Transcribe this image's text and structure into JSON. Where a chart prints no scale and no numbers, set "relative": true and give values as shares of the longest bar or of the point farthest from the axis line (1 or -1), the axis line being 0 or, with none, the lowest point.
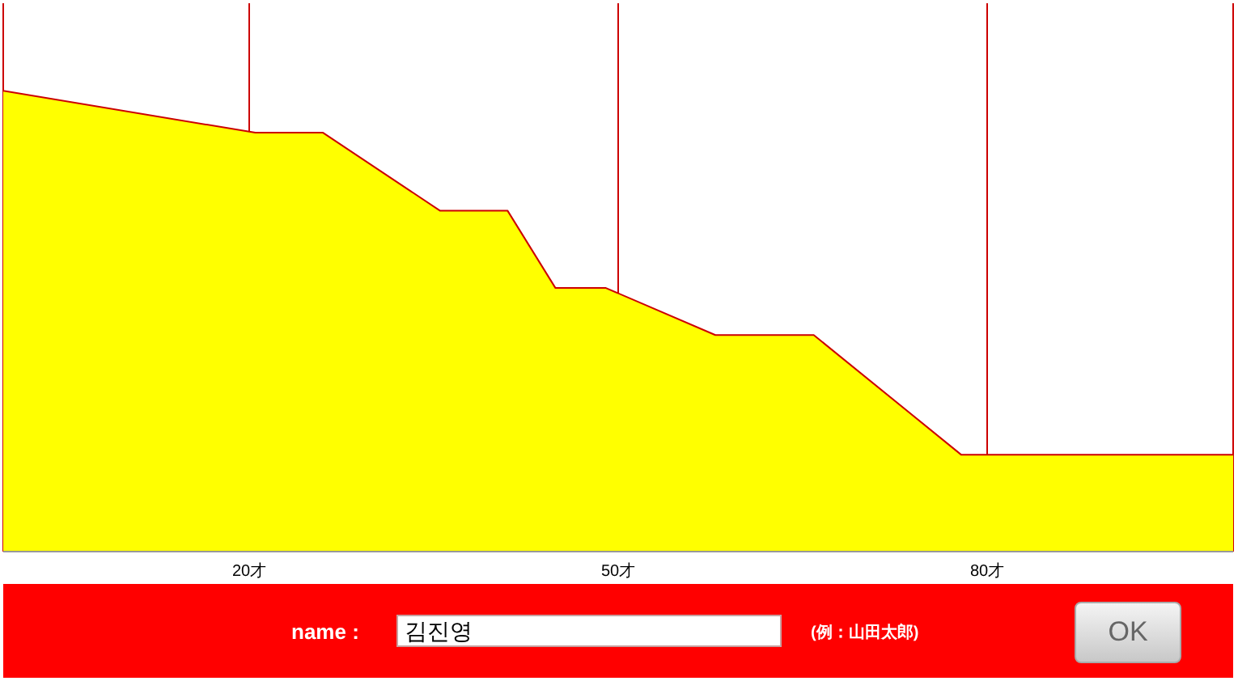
{
  "chart_data": {
    "type": "area",
    "relative": true,
    "x": [
      0,
      20.5,
      26,
      35.5,
      41,
      44.9,
      49,
      57.9,
      65.9,
      77.9,
      100
    ],
    "series": [
      {
        "color": "#ffff00",
        "values": [
          1.0,
          0.909,
          0.909,
          0.74,
          0.74,
          0.572,
          0.572,
          0.47,
          0.47,
          0.21,
          0.21
        ]
      }
    ],
    "xlim": [
      0,
      100
    ],
    "xticks": [
      {
        "value": 20,
        "label": "20才"
      },
      {
        "value": 50,
        "label": "50才"
      },
      {
        "value": 80,
        "label": "80才"
      }
    ],
    "grid": "x",
    "tick_labels": "x",
    "marker": "none",
    "line_style": "solid",
    "annotations": [
      "name :",
      "김진영",
      "(例：山田太郎)",
      "OK"
    ]
  }
}
